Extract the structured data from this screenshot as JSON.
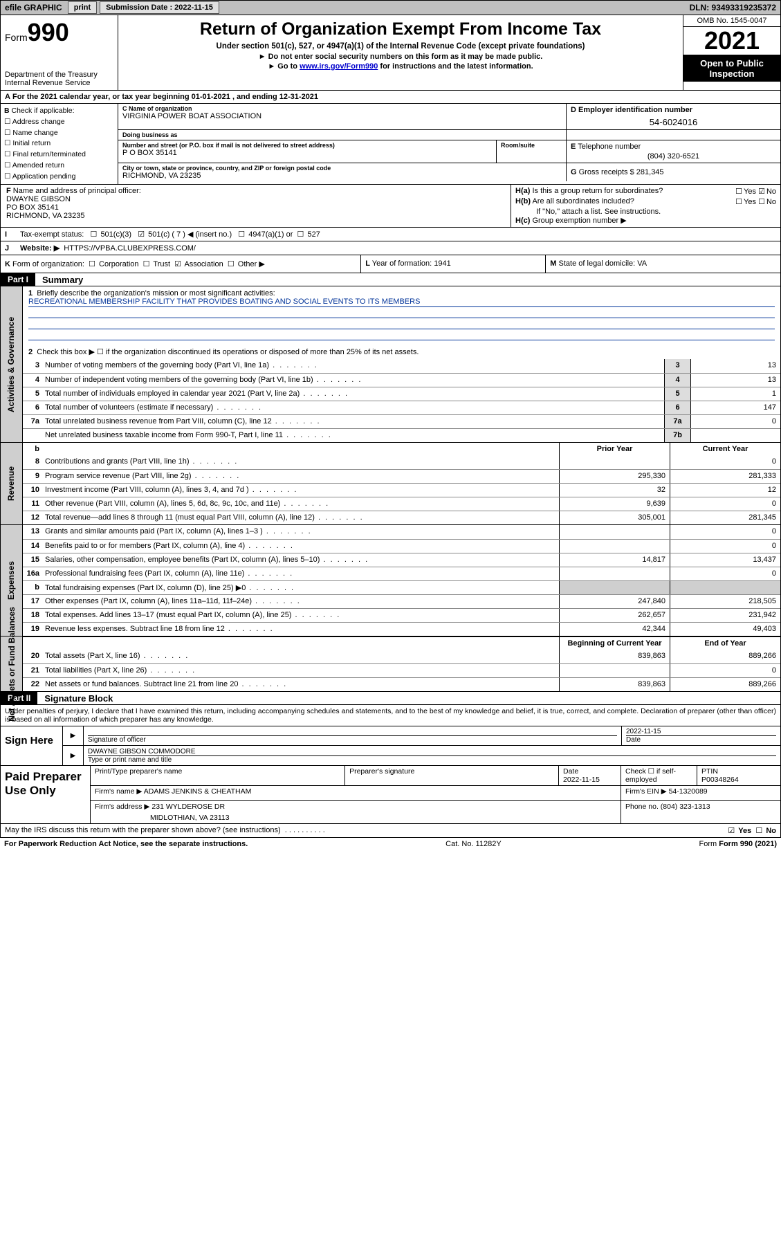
{
  "topbar": {
    "efile": "efile GRAPHIC",
    "print": "print",
    "sub_lbl": "Submission Date : 2022-11-15",
    "dln": "DLN: 93493319235372"
  },
  "hdr": {
    "form_word": "Form",
    "form_num": "990",
    "dept": "Department of the Treasury\nInternal Revenue Service",
    "title": "Return of Organization Exempt From Income Tax",
    "sub": "Under section 501(c), 527, or 4947(a)(1) of the Internal Revenue Code (except private foundations)",
    "line1": "Do not enter social security numbers on this form as it may be made public.",
    "line2_a": "Go to ",
    "line2_link": "www.irs.gov/Form990",
    "line2_b": " for instructions and the latest information.",
    "omb": "OMB No. 1545-0047",
    "year": "2021",
    "open": "Open to Public Inspection"
  },
  "A": {
    "text": "For the 2021 calendar year, or tax year beginning 01-01-2021    , and ending 12-31-2021"
  },
  "B": {
    "hdr": "Check if applicable:",
    "opts": [
      "Address change",
      "Name change",
      "Initial return",
      "Final return/terminated",
      "Amended return",
      "Application pending"
    ]
  },
  "C": {
    "name_lbl": "Name of organization",
    "name": "VIRGINIA POWER BOAT ASSOCIATION",
    "dba_lbl": "Doing business as",
    "dba": "",
    "street_lbl": "Number and street (or P.O. box if mail is not delivered to street address)",
    "room_lbl": "Room/suite",
    "street": "P O BOX 35141",
    "city_lbl": "City or town, state or province, country, and ZIP or foreign postal code",
    "city": "RICHMOND, VA  23235"
  },
  "D": {
    "lbl": "Employer identification number",
    "val": "54-6024016"
  },
  "E": {
    "lbl": "Telephone number",
    "val": "(804) 320-6521"
  },
  "G": {
    "lbl": "Gross receipts $",
    "val": "281,345"
  },
  "F": {
    "lbl": "Name and address of principal officer:",
    "name": "DWAYNE GIBSON",
    "addr1": "PO BOX 35141",
    "addr2": "RICHMOND, VA  23235"
  },
  "H": {
    "a": "Is this a group return for subordinates?",
    "a_ans": "No",
    "b": "Are all subordinates included?",
    "b_note": "If \"No,\" attach a list. See instructions.",
    "c": "Group exemption number ▶"
  },
  "I": {
    "lbl": "Tax-exempt status:",
    "c3": "501(c)(3)",
    "c": "501(c) ( 7 ) ◀ (insert no.)",
    "a1": "4947(a)(1) or",
    "s527": "527"
  },
  "J": {
    "lbl": "Website: ▶",
    "val": "HTTPS://VPBA.CLUBEXPRESS.COM/"
  },
  "K": {
    "text": "Form of organization:",
    "opts": [
      "Corporation",
      "Trust",
      "Association",
      "Other ▶"
    ]
  },
  "L": {
    "text": "Year of formation: 1941"
  },
  "M": {
    "text": "State of legal domicile: VA"
  },
  "partI": {
    "hdr": "Part I",
    "title": "Summary",
    "tabs": [
      "Activities & Governance",
      "Revenue",
      "Expenses",
      "Net Assets or Fund Balances"
    ],
    "mission_lbl": "Briefly describe the organization's mission or most significant activities:",
    "mission": "RECREATIONAL MEMBERSHIP FACILITY THAT PROVIDES BOATING AND SOCIAL EVENTS TO ITS MEMBERS",
    "line2": "Check this box ▶ ☐  if the organization discontinued its operations or disposed of more than 25% of its net assets.",
    "rows_single": [
      {
        "n": "3",
        "t": "Number of voting members of the governing body (Part VI, line 1a)",
        "box": "3",
        "v": "13"
      },
      {
        "n": "4",
        "t": "Number of independent voting members of the governing body (Part VI, line 1b)",
        "box": "4",
        "v": "13"
      },
      {
        "n": "5",
        "t": "Total number of individuals employed in calendar year 2021 (Part V, line 2a)",
        "box": "5",
        "v": "1"
      },
      {
        "n": "6",
        "t": "Total number of volunteers (estimate if necessary)",
        "box": "6",
        "v": "147"
      },
      {
        "n": "7a",
        "t": "Total unrelated business revenue from Part VIII, column (C), line 12",
        "box": "7a",
        "v": "0"
      },
      {
        "n": "",
        "t": "Net unrelated business taxable income from Form 990-T, Part I, line 11",
        "box": "7b",
        "v": ""
      }
    ],
    "col_h1": "Prior Year",
    "col_h2": "Current Year",
    "rows_rev": [
      {
        "n": "8",
        "t": "Contributions and grants (Part VIII, line 1h)",
        "p": "",
        "c": "0"
      },
      {
        "n": "9",
        "t": "Program service revenue (Part VIII, line 2g)",
        "p": "295,330",
        "c": "281,333"
      },
      {
        "n": "10",
        "t": "Investment income (Part VIII, column (A), lines 3, 4, and 7d )",
        "p": "32",
        "c": "12"
      },
      {
        "n": "11",
        "t": "Other revenue (Part VIII, column (A), lines 5, 6d, 8c, 9c, 10c, and 11e)",
        "p": "9,639",
        "c": "0"
      },
      {
        "n": "12",
        "t": "Total revenue—add lines 8 through 11 (must equal Part VIII, column (A), line 12)",
        "p": "305,001",
        "c": "281,345"
      }
    ],
    "rows_exp": [
      {
        "n": "13",
        "t": "Grants and similar amounts paid (Part IX, column (A), lines 1–3 )",
        "p": "",
        "c": "0"
      },
      {
        "n": "14",
        "t": "Benefits paid to or for members (Part IX, column (A), line 4)",
        "p": "",
        "c": "0"
      },
      {
        "n": "15",
        "t": "Salaries, other compensation, employee benefits (Part IX, column (A), lines 5–10)",
        "p": "14,817",
        "c": "13,437"
      },
      {
        "n": "16a",
        "t": "Professional fundraising fees (Part IX, column (A), line 11e)",
        "p": "",
        "c": "0"
      },
      {
        "n": "b",
        "t": "Total fundraising expenses (Part IX, column (D), line 25) ▶0",
        "p": "SHADE",
        "c": "SHADE"
      },
      {
        "n": "17",
        "t": "Other expenses (Part IX, column (A), lines 11a–11d, 11f–24e)",
        "p": "247,840",
        "c": "218,505"
      },
      {
        "n": "18",
        "t": "Total expenses. Add lines 13–17 (must equal Part IX, column (A), line 25)",
        "p": "262,657",
        "c": "231,942"
      },
      {
        "n": "19",
        "t": "Revenue less expenses. Subtract line 18 from line 12",
        "p": "42,344",
        "c": "49,403"
      }
    ],
    "col_h3": "Beginning of Current Year",
    "col_h4": "End of Year",
    "rows_net": [
      {
        "n": "20",
        "t": "Total assets (Part X, line 16)",
        "p": "839,863",
        "c": "889,266"
      },
      {
        "n": "21",
        "t": "Total liabilities (Part X, line 26)",
        "p": "",
        "c": "0"
      },
      {
        "n": "22",
        "t": "Net assets or fund balances. Subtract line 21 from line 20",
        "p": "839,863",
        "c": "889,266"
      }
    ]
  },
  "partII": {
    "hdr": "Part II",
    "title": "Signature Block",
    "decl": "Under penalties of perjury, I declare that I have examined this return, including accompanying schedules and statements, and to the best of my knowledge and belief, it is true, correct, and complete. Declaration of preparer (other than officer) is based on all information of which preparer has any knowledge.",
    "sign_here": "Sign Here",
    "sig_officer_lbl": "Signature of officer",
    "date_lbl": "Date",
    "sig_date_val": "2022-11-15",
    "officer_name": "DWAYNE GIBSON  COMMODORE",
    "officer_sub": "Type or print name and title"
  },
  "prep": {
    "hdr": "Paid Preparer Use Only",
    "r1": {
      "a": "Print/Type preparer's name",
      "b": "Preparer's signature",
      "c_lbl": "Date",
      "c": "2022-11-15",
      "d": "Check ☐ if self-employed",
      "e_lbl": "PTIN",
      "e": "P00348264"
    },
    "r2": {
      "a": "Firm's name    ▶ ADAMS JENKINS & CHEATHAM",
      "b": "Firm's EIN ▶ 54-1320089"
    },
    "r3": {
      "a": "Firm's address ▶ 231 WYLDEROSE DR",
      "b": "Phone no. (804) 323-1313"
    },
    "r3b": "MIDLOTHIAN, VA  23113"
  },
  "footer": {
    "discuss": "May the IRS discuss this return with the preparer shown above? (see instructions)",
    "yes": "Yes",
    "no": "No",
    "pra": "For Paperwork Reduction Act Notice, see the separate instructions.",
    "cat": "Cat. No. 11282Y",
    "form": "Form 990 (2021)"
  }
}
